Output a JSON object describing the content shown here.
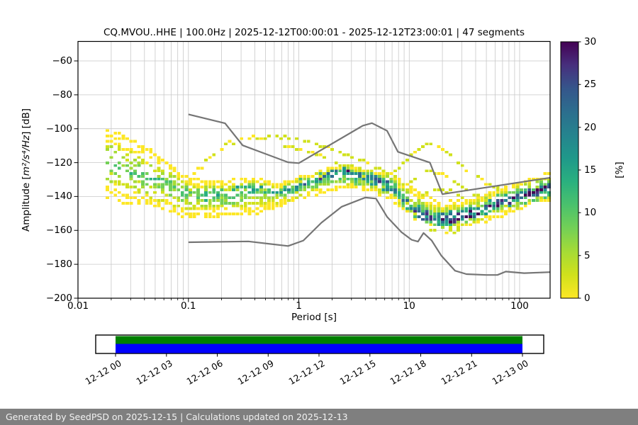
{
  "title": "CQ.MVOU..HHE | 100.0Hz | 2025-12-12T00:00:01 - 2025-12-12T23:00:01 | 47 segments",
  "x_axis": {
    "label": "Period [s]",
    "scale": "log",
    "min": 0.01,
    "max": 188,
    "major_ticks": [
      0.01,
      0.1,
      1,
      10,
      100
    ],
    "tick_labels": [
      "0.01",
      "0.1",
      "1",
      "10",
      "100"
    ]
  },
  "y_axis": {
    "label_prefix": "Amplitude [",
    "label_math": "m²/s⁴/Hz",
    "label_suffix": "] [dB]",
    "min": -200,
    "max": -48,
    "ticks": [
      -60,
      -80,
      -100,
      -120,
      -140,
      -160,
      -180,
      -200
    ],
    "tick_labels": [
      "−60",
      "−80",
      "−100",
      "−120",
      "−140",
      "−160",
      "−180",
      "−200"
    ]
  },
  "colorbar": {
    "label": "[%]",
    "min": 0,
    "max": 30,
    "ticks": [
      0,
      5,
      10,
      15,
      20,
      25,
      30
    ],
    "colormap": "viridis_r",
    "palette_low_to_high": [
      "#fde725",
      "#d0e11c",
      "#a5db36",
      "#73d056",
      "#4ac16d",
      "#2ab07f",
      "#1f998a",
      "#25848e",
      "#2c6e8e",
      "#35568b",
      "#472f7d",
      "#440154"
    ]
  },
  "styles": {
    "grid_color": "#c8c8c8",
    "noise_model_color": "#757575",
    "axis_color": "#000000",
    "background": "#ffffff"
  },
  "chart_data": {
    "type": "heatmap",
    "description": "PPSD probability histogram: percent occurrence vs log period and amplitude dB",
    "xlabel": "Period [s]",
    "ylabel": "Amplitude [m²/s⁴/Hz] [dB]",
    "xlim": [
      0.01,
      188
    ],
    "ylim": [
      -200,
      -48
    ],
    "xscale": "log",
    "colorbar_range": [
      0,
      30
    ],
    "noise_models": {
      "high_nhnm": [
        [
          0.1,
          -91.5
        ],
        [
          0.215,
          -96.8
        ],
        [
          0.31,
          -109.8
        ],
        [
          0.8,
          -119.8
        ],
        [
          1.0,
          -120.3
        ],
        [
          3.8,
          -98.2
        ],
        [
          4.6,
          -96.7
        ],
        [
          6.3,
          -101.2
        ],
        [
          7.9,
          -113.6
        ],
        [
          15.4,
          -120.0
        ],
        [
          20.0,
          -138.6
        ],
        [
          188,
          -128.9
        ]
      ],
      "low_nlnm": [
        [
          0.1,
          -167.0
        ],
        [
          0.35,
          -166.5
        ],
        [
          0.8,
          -169.2
        ],
        [
          1.1,
          -166.0
        ],
        [
          1.6,
          -155.5
        ],
        [
          2.45,
          -146.0
        ],
        [
          4.0,
          -140.6
        ],
        [
          5.0,
          -141.2
        ],
        [
          6.3,
          -152.0
        ],
        [
          8.5,
          -161.0
        ],
        [
          10.5,
          -165.5
        ],
        [
          12.0,
          -166.6
        ],
        [
          13.5,
          -161.5
        ],
        [
          16.0,
          -166.0
        ],
        [
          19.5,
          -174.8
        ],
        [
          26.0,
          -183.8
        ],
        [
          33.0,
          -185.8
        ],
        [
          50.0,
          -186.3
        ],
        [
          63.0,
          -186.3
        ],
        [
          75.0,
          -184.3
        ],
        [
          110.0,
          -185.2
        ],
        [
          188.0,
          -184.6
        ]
      ]
    },
    "psd_band": {
      "columns": [
        "period_s",
        "top_dB",
        "median_dB",
        "bottom_dB",
        "peak_percent",
        "mode_bias"
      ],
      "points": [
        [
          0.0185,
          -101,
          -118,
          -140,
          9,
          0
        ],
        [
          0.025,
          -104,
          -122,
          -143,
          10,
          0
        ],
        [
          0.04,
          -110,
          -128,
          -145,
          10,
          0.1
        ],
        [
          0.06,
          -116,
          -132,
          -147,
          11,
          0.15
        ],
        [
          0.1,
          -128,
          -139,
          -150,
          12,
          0.1
        ],
        [
          0.15,
          -130,
          -141,
          -150,
          13,
          0.2
        ],
        [
          0.25,
          -131,
          -139,
          -150,
          14,
          0.35
        ],
        [
          0.4,
          -130,
          -137,
          -150,
          15,
          0.45
        ],
        [
          0.64,
          -133,
          -138,
          -144,
          16,
          0.3
        ],
        [
          1.0,
          -128,
          -134,
          -141,
          18,
          0.35
        ],
        [
          1.6,
          -124,
          -129,
          -136,
          22,
          0.45
        ],
        [
          2.5,
          -119.5,
          -124,
          -134,
          28,
          0.55
        ],
        [
          3.5,
          -123,
          -128,
          -134,
          24,
          0.45
        ],
        [
          5.0,
          -125.5,
          -131,
          -137,
          24,
          0.4
        ],
        [
          7.0,
          -127,
          -133.5,
          -140,
          22,
          0.1
        ],
        [
          9.0,
          -133,
          -140,
          -147,
          20,
          -0.25
        ],
        [
          13,
          -139,
          -147,
          -154,
          26,
          -0.4
        ],
        [
          18,
          -143,
          -150.5,
          -157,
          30,
          -0.45
        ],
        [
          25,
          -143,
          -150.5,
          -157,
          30,
          -0.45
        ],
        [
          35,
          -141,
          -148,
          -155,
          26,
          -0.35
        ],
        [
          50,
          -138,
          -145,
          -152,
          24,
          -0.2
        ],
        [
          70,
          -134.5,
          -141.5,
          -149,
          26,
          0
        ],
        [
          100,
          -131,
          -138.5,
          -146,
          28,
          0
        ],
        [
          140,
          -128.5,
          -135.5,
          -143,
          29,
          0.1
        ],
        [
          188,
          -127,
          -134,
          -141.5,
          30,
          0.1
        ]
      ]
    },
    "outlier_traces": [
      [
        [
          0.095,
          -131
        ],
        [
          0.13,
          -122
        ],
        [
          0.17,
          -114.5
        ],
        [
          0.23,
          -108
        ],
        [
          0.32,
          -105
        ],
        [
          0.5,
          -103.8
        ],
        [
          0.8,
          -104.5
        ],
        [
          1.2,
          -107
        ],
        [
          1.8,
          -110.5
        ],
        [
          2.6,
          -114
        ],
        [
          3.6,
          -118
        ],
        [
          5.0,
          -122
        ],
        [
          6.5,
          -126
        ],
        [
          8.0,
          -129.5
        ]
      ],
      [
        [
          6.5,
          -128.5
        ],
        [
          8,
          -122.5
        ],
        [
          10,
          -115.5
        ],
        [
          13,
          -110
        ],
        [
          16,
          -108
        ],
        [
          20,
          -111
        ],
        [
          26,
          -117
        ],
        [
          34,
          -123.5
        ],
        [
          45,
          -129
        ],
        [
          60,
          -134
        ],
        [
          78,
          -137.5
        ]
      ],
      [
        [
          0.7,
          -108.5
        ],
        [
          1.1,
          -112
        ],
        [
          1.7,
          -116
        ],
        [
          2.4,
          -120
        ],
        [
          3.2,
          -123.5
        ],
        [
          4.2,
          -127
        ]
      ],
      [
        [
          8,
          -135
        ],
        [
          11,
          -129.5
        ],
        [
          15,
          -124.5
        ],
        [
          20,
          -126
        ],
        [
          28,
          -132
        ],
        [
          38,
          -138
        ],
        [
          50,
          -141.5
        ]
      ],
      [
        [
          9,
          -144
        ],
        [
          13,
          -138.5
        ],
        [
          18,
          -134.5
        ],
        [
          25,
          -136.5
        ],
        [
          35,
          -142
        ],
        [
          45,
          -146
        ]
      ],
      [
        [
          15,
          -158.5
        ],
        [
          20,
          -160
        ],
        [
          28,
          -159
        ]
      ]
    ]
  },
  "timeline": {
    "tick_labels": [
      "12-12 00",
      "12-12 03",
      "12-12 06",
      "12-12 09",
      "12-12 12",
      "12-12 15",
      "12-12 18",
      "12-12 21",
      "12-13 00"
    ],
    "bars": [
      {
        "name": "data-coverage",
        "color": "#008000"
      },
      {
        "name": "psd-coverage",
        "color": "#0000ff"
      }
    ]
  },
  "footer": {
    "text": "Generated by SeedPSD on 2025-12-15 | Calculations updated on 2025-12-13",
    "background": "#7f7f7f"
  }
}
